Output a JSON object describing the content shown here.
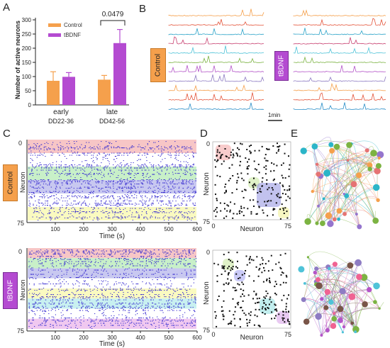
{
  "panels": {
    "A": "A",
    "B": "B",
    "C": "C",
    "D": "D",
    "E": "E"
  },
  "panel_a": {
    "ylabel": "Number of active neurons",
    "legend": [
      {
        "label": "Control",
        "color": "#f5a04c"
      },
      {
        "label": "tBDNF",
        "color": "#b44bd1"
      }
    ],
    "groups": [
      {
        "label1": "early",
        "label2": "DD22-36"
      },
      {
        "label1": "late",
        "label2": "DD42-56"
      }
    ],
    "significance": "0.0479"
  },
  "chart_data": {
    "type": "bar",
    "categories": [
      "early DD22-36",
      "late DD42-56"
    ],
    "series": [
      {
        "name": "Control",
        "values": [
          85,
          89
        ],
        "errors": [
          32,
          15
        ]
      },
      {
        "name": "tBDNF",
        "values": [
          99,
          218
        ],
        "errors": [
          15,
          48
        ]
      }
    ],
    "ylabel": "Number of active neurons",
    "ylim": [
      0,
      300
    ],
    "yticks": [
      0,
      50,
      100,
      150,
      200,
      250,
      300
    ]
  },
  "panel_b": {
    "control_label": "Control",
    "tbdnf_label": "tBDNF",
    "scale_label": "1min",
    "trace_colors": [
      "#f5a04c",
      "#e4553b",
      "#2ba3c8",
      "#c84070",
      "#4fc3d8",
      "#7cb342",
      "#b455c8",
      "#8e7cc3",
      "#f5a04c",
      "#e4553b",
      "#2b8fc8"
    ]
  },
  "panel_c": {
    "control_label": "Control",
    "tbdnf_label": "tBDNF",
    "ylabel": "Neuron",
    "xlabel": "Time (s)",
    "xticks": [
      "100",
      "200",
      "300",
      "400",
      "500",
      "600"
    ],
    "ytick_top": "0",
    "ytick_bottom": "75",
    "control_bands": [
      "#f7c6c6",
      "#ffffff",
      "#c8f0c8",
      "#c8c8f0",
      "#ffffff",
      "#fafac0"
    ],
    "tbdnf_bands": [
      "#f7c6c6",
      "#c8f0c8",
      "#c8c8f0",
      "#ffffff",
      "#fafac0",
      "#c8f0f0",
      "#ffffff",
      "#f0c8f0"
    ]
  },
  "panel_d": {
    "ylabel": "Neuron",
    "xlabel": "Neuron",
    "tick0": "0",
    "tick75": "75"
  },
  "colors": {
    "control_badge": "#f5a04c",
    "tbdnf_badge": "#b44bd1",
    "raster_dot": "#3a2fd0"
  }
}
